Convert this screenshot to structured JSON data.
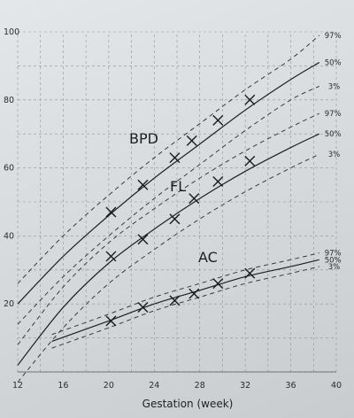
{
  "chart_data": {
    "type": "line",
    "title": "",
    "xlabel": "Gestation (week)",
    "ylabel": "",
    "xlim": [
      12,
      40
    ],
    "ylim": [
      0,
      100
    ],
    "x_ticks": [
      "12",
      "16",
      "20",
      "24",
      "28",
      "32",
      "36",
      "40"
    ],
    "y_ticks": [
      "20",
      "40",
      "60",
      "80",
      "100"
    ],
    "grid": true,
    "groups": [
      {
        "name": "BPD",
        "curves": [
          {
            "name": "97%",
            "style": "dashed",
            "x": [
              12,
              16,
              20,
              24,
              28,
              32,
              36,
              38.5
            ],
            "y": [
              26,
              40,
              52,
              63,
              73,
              83,
              92,
              99
            ]
          },
          {
            "name": "50%",
            "style": "solid",
            "x": [
              12,
              16,
              20,
              24,
              28,
              32,
              36,
              38.5
            ],
            "y": [
              20,
              34,
              46,
              57,
              67,
              77,
              86,
              91
            ]
          },
          {
            "name": "3%",
            "style": "dashed",
            "x": [
              12,
              16,
              20,
              24,
              28,
              32,
              36,
              38.5
            ],
            "y": [
              14,
              28,
              40,
              51,
              61,
              71,
              80,
              84
            ]
          }
        ],
        "measurements": {
          "x": [
            20.2,
            23.0,
            25.8,
            27.3,
            29.6,
            32.4
          ],
          "y": [
            47,
            55,
            63,
            68,
            74,
            80
          ]
        }
      },
      {
        "name": "FL",
        "curves": [
          {
            "name": "97%",
            "style": "dashed",
            "x": [
              12,
              16,
              20,
              24,
              28,
              32,
              36,
              38.5
            ],
            "y": [
              8,
              25,
              38,
              48,
              57,
              65,
              72,
              76
            ]
          },
          {
            "name": "50%",
            "style": "solid",
            "x": [
              12,
              16,
              20,
              24,
              28,
              32,
              36,
              38.5
            ],
            "y": [
              2,
              19,
              32,
              42,
              51,
              59,
              66,
              70
            ]
          },
          {
            "name": "3%",
            "style": "dashed",
            "x": [
              12,
              16,
              20,
              24,
              28,
              32,
              36,
              38.5
            ],
            "y": [
              -3,
              13,
              26,
              36,
              45,
              53,
              60,
              64
            ]
          }
        ],
        "measurements": {
          "x": [
            20.2,
            23.0,
            25.8,
            27.5,
            29.6,
            32.4
          ],
          "y": [
            34,
            39,
            45,
            51,
            56,
            62
          ]
        }
      },
      {
        "name": "AC",
        "curves": [
          {
            "name": "97%",
            "style": "dashed",
            "x": [
              15,
              20,
              24,
              28,
              32,
              36,
              38.5
            ],
            "y": [
              11,
              17,
              22,
              26,
              30,
              33,
              35
            ]
          },
          {
            "name": "50%",
            "style": "solid",
            "x": [
              15,
              20,
              24,
              28,
              32,
              36,
              38.5
            ],
            "y": [
              9,
              15,
              20,
              24,
              28,
              31,
              33
            ]
          },
          {
            "name": "3%",
            "style": "dashed",
            "x": [
              15,
              20,
              24,
              28,
              32,
              36,
              38.5
            ],
            "y": [
              7,
              13,
              18,
              22,
              26,
              29,
              31
            ]
          }
        ],
        "measurements": {
          "x": [
            20.2,
            23.0,
            25.8,
            27.5,
            29.6,
            32.4
          ],
          "y": [
            15,
            19,
            21,
            23,
            26,
            29
          ]
        }
      }
    ]
  }
}
